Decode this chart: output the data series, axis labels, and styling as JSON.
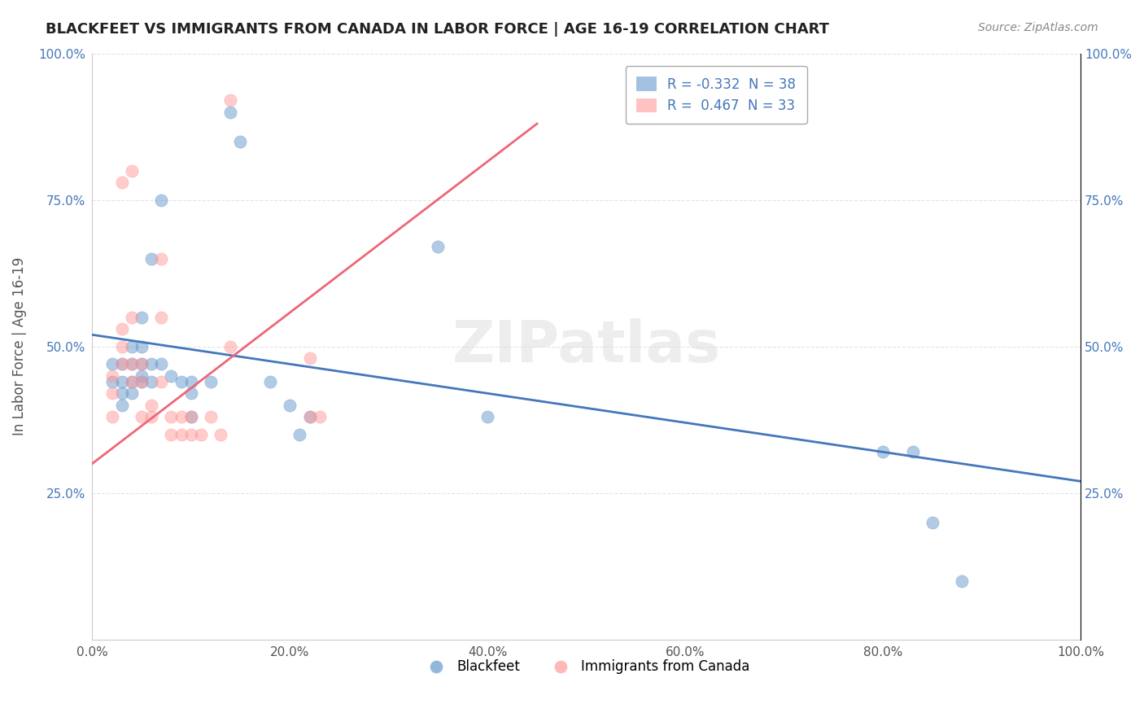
{
  "title": "BLACKFEET VS IMMIGRANTS FROM CANADA IN LABOR FORCE | AGE 16-19 CORRELATION CHART",
  "source": "Source: ZipAtlas.com",
  "xlabel": "",
  "ylabel": "In Labor Force | Age 16-19",
  "xlim": [
    0,
    1.0
  ],
  "ylim": [
    0,
    1.0
  ],
  "xtick_labels": [
    "0.0%",
    "20.0%",
    "40.0%",
    "60.0%",
    "80.0%",
    "100.0%"
  ],
  "xtick_vals": [
    0.0,
    0.2,
    0.4,
    0.6,
    0.8,
    1.0
  ],
  "ytick_labels": [
    "25.0%",
    "50.0%",
    "75.0%",
    "100.0%"
  ],
  "ytick_vals": [
    0.25,
    0.5,
    0.75,
    1.0
  ],
  "legend_entry1": "R = -0.332  N = 38",
  "legend_entry2": "R =  0.467  N = 33",
  "blue_color": "#6699CC",
  "pink_color": "#FF9999",
  "blue_line_color": "#4477BB",
  "pink_line_color": "#EE6677",
  "watermark": "ZIPatlas",
  "blue_scatter": [
    [
      0.02,
      0.47
    ],
    [
      0.02,
      0.44
    ],
    [
      0.03,
      0.47
    ],
    [
      0.03,
      0.44
    ],
    [
      0.03,
      0.42
    ],
    [
      0.03,
      0.4
    ],
    [
      0.04,
      0.5
    ],
    [
      0.04,
      0.47
    ],
    [
      0.04,
      0.44
    ],
    [
      0.04,
      0.42
    ],
    [
      0.05,
      0.55
    ],
    [
      0.05,
      0.5
    ],
    [
      0.05,
      0.47
    ],
    [
      0.05,
      0.45
    ],
    [
      0.05,
      0.44
    ],
    [
      0.06,
      0.65
    ],
    [
      0.06,
      0.47
    ],
    [
      0.06,
      0.44
    ],
    [
      0.07,
      0.75
    ],
    [
      0.07,
      0.47
    ],
    [
      0.08,
      0.45
    ],
    [
      0.09,
      0.44
    ],
    [
      0.1,
      0.44
    ],
    [
      0.1,
      0.42
    ],
    [
      0.1,
      0.38
    ],
    [
      0.12,
      0.44
    ],
    [
      0.14,
      0.9
    ],
    [
      0.15,
      0.85
    ],
    [
      0.18,
      0.44
    ],
    [
      0.2,
      0.4
    ],
    [
      0.21,
      0.35
    ],
    [
      0.22,
      0.38
    ],
    [
      0.35,
      0.67
    ],
    [
      0.4,
      0.38
    ],
    [
      0.8,
      0.32
    ],
    [
      0.83,
      0.32
    ],
    [
      0.85,
      0.2
    ],
    [
      0.88,
      0.1
    ]
  ],
  "pink_scatter": [
    [
      0.02,
      0.38
    ],
    [
      0.02,
      0.42
    ],
    [
      0.02,
      0.45
    ],
    [
      0.03,
      0.47
    ],
    [
      0.03,
      0.5
    ],
    [
      0.03,
      0.53
    ],
    [
      0.03,
      0.78
    ],
    [
      0.04,
      0.44
    ],
    [
      0.04,
      0.47
    ],
    [
      0.04,
      0.55
    ],
    [
      0.04,
      0.8
    ],
    [
      0.05,
      0.44
    ],
    [
      0.05,
      0.47
    ],
    [
      0.05,
      0.38
    ],
    [
      0.06,
      0.4
    ],
    [
      0.06,
      0.38
    ],
    [
      0.07,
      0.44
    ],
    [
      0.07,
      0.55
    ],
    [
      0.07,
      0.65
    ],
    [
      0.08,
      0.38
    ],
    [
      0.08,
      0.35
    ],
    [
      0.09,
      0.38
    ],
    [
      0.09,
      0.35
    ],
    [
      0.1,
      0.38
    ],
    [
      0.1,
      0.35
    ],
    [
      0.11,
      0.35
    ],
    [
      0.12,
      0.38
    ],
    [
      0.13,
      0.35
    ],
    [
      0.14,
      0.5
    ],
    [
      0.14,
      0.92
    ],
    [
      0.22,
      0.48
    ],
    [
      0.22,
      0.38
    ],
    [
      0.23,
      0.38
    ]
  ],
  "blue_line": {
    "x0": 0.0,
    "y0": 0.52,
    "x1": 1.0,
    "y1": 0.27
  },
  "pink_line": {
    "x0": 0.0,
    "y0": 0.3,
    "x1": 0.45,
    "y1": 0.88
  },
  "background_color": "#FFFFFF",
  "grid_color": "#DDDDDD"
}
